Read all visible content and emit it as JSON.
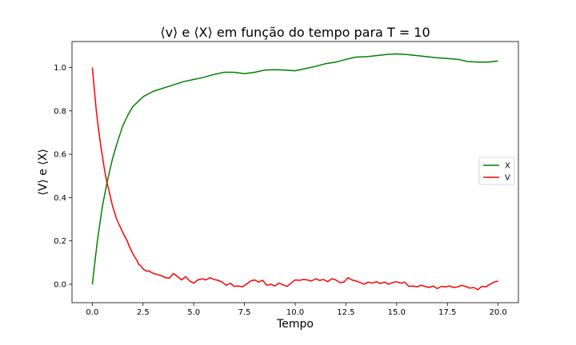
{
  "chart_data": {
    "type": "line",
    "title": "⟨v⟩ e ⟨X⟩ em função do tempo para T = 10",
    "xlabel": "Tempo",
    "ylabel": "⟨V⟩ e ⟨X⟩",
    "xlim": [
      -1.0,
      21.0
    ],
    "ylim": [
      -0.085,
      1.12
    ],
    "xticks": [
      0.0,
      2.5,
      5.0,
      7.5,
      10.0,
      12.5,
      15.0,
      17.5,
      20.0
    ],
    "xtick_labels": [
      "0.0",
      "2.5",
      "5.0",
      "7.5",
      "10.0",
      "12.5",
      "15.0",
      "17.5",
      "20.0"
    ],
    "yticks": [
      0.0,
      0.2,
      0.4,
      0.6,
      0.8,
      1.0
    ],
    "ytick_labels": [
      "0.0",
      "0.2",
      "0.4",
      "0.6",
      "0.8",
      "1.0"
    ],
    "grid": false,
    "legend": "center-right",
    "series": [
      {
        "name": "X",
        "color": "#008000",
        "x": [
          0,
          0.25,
          0.5,
          0.75,
          1.0,
          1.25,
          1.5,
          1.75,
          2.0,
          2.5,
          3.0,
          3.5,
          4.0,
          4.5,
          5.0,
          5.5,
          6.0,
          6.5,
          7.0,
          7.5,
          8.0,
          8.5,
          9.0,
          9.5,
          10.0,
          10.5,
          11.0,
          11.5,
          12.0,
          12.5,
          13.0,
          13.5,
          14.0,
          14.5,
          15.0,
          15.5,
          16.0,
          16.5,
          17.0,
          17.5,
          18.0,
          18.5,
          19.0,
          19.5,
          20.0
        ],
        "y": [
          0.0,
          0.2,
          0.36,
          0.48,
          0.58,
          0.66,
          0.73,
          0.78,
          0.82,
          0.865,
          0.89,
          0.905,
          0.92,
          0.935,
          0.945,
          0.955,
          0.968,
          0.978,
          0.978,
          0.972,
          0.978,
          0.988,
          0.99,
          0.988,
          0.985,
          0.995,
          1.005,
          1.018,
          1.025,
          1.038,
          1.048,
          1.05,
          1.055,
          1.06,
          1.063,
          1.06,
          1.055,
          1.05,
          1.045,
          1.042,
          1.038,
          1.028,
          1.025,
          1.025,
          1.03
        ]
      },
      {
        "name": "V",
        "color": "#ff0000",
        "x": [
          0,
          0.1,
          0.2,
          0.3,
          0.4,
          0.5,
          0.6,
          0.7,
          0.8,
          0.9,
          1.0,
          1.1,
          1.2,
          1.3,
          1.4,
          1.5,
          1.6,
          1.7,
          1.8,
          1.9,
          2.0,
          2.1,
          2.2,
          2.3,
          2.4,
          2.5,
          2.6,
          2.7,
          2.8,
          2.9,
          3.0,
          3.2,
          3.4,
          3.6,
          3.8,
          4.0,
          4.2,
          4.4,
          4.6,
          4.8,
          5.0,
          5.2,
          5.4,
          5.6,
          5.8,
          6.0,
          6.2,
          6.4,
          6.6,
          6.8,
          7.0,
          7.2,
          7.4,
          7.6,
          7.8,
          8.0,
          8.2,
          8.4,
          8.6,
          8.8,
          9.0,
          9.2,
          9.4,
          9.6,
          9.8,
          10.0,
          10.2,
          10.4,
          10.6,
          10.8,
          11.0,
          11.2,
          11.4,
          11.6,
          11.8,
          12.0,
          12.2,
          12.4,
          12.6,
          12.8,
          13.0,
          13.2,
          13.4,
          13.6,
          13.8,
          14.0,
          14.2,
          14.4,
          14.6,
          14.8,
          15.0,
          15.2,
          15.4,
          15.6,
          15.8,
          16.0,
          16.2,
          16.4,
          16.6,
          16.8,
          17.0,
          17.2,
          17.4,
          17.6,
          17.8,
          18.0,
          18.2,
          18.4,
          18.6,
          18.8,
          19.0,
          19.2,
          19.4,
          19.6,
          19.8,
          20.0
        ],
        "y": [
          1.0,
          0.9,
          0.8,
          0.72,
          0.65,
          0.59,
          0.53,
          0.48,
          0.44,
          0.4,
          0.36,
          0.33,
          0.3,
          0.28,
          0.26,
          0.24,
          0.22,
          0.205,
          0.18,
          0.16,
          0.14,
          0.125,
          0.11,
          0.09,
          0.085,
          0.07,
          0.065,
          0.06,
          0.062,
          0.055,
          0.05,
          0.045,
          0.04,
          0.03,
          0.028,
          0.05,
          0.035,
          0.02,
          0.035,
          0.015,
          0.005,
          0.02,
          0.025,
          0.02,
          0.03,
          0.022,
          0.018,
          0.01,
          -0.005,
          0.005,
          -0.01,
          -0.008,
          -0.012,
          0.0,
          0.015,
          0.02,
          0.01,
          0.018,
          -0.005,
          0.0,
          -0.008,
          0.005,
          -0.003,
          -0.01,
          0.005,
          0.02,
          0.018,
          0.022,
          0.02,
          0.015,
          0.025,
          0.018,
          0.022,
          0.012,
          0.025,
          0.02,
          0.008,
          0.01,
          0.03,
          0.02,
          0.015,
          0.008,
          0.0,
          0.01,
          0.005,
          0.012,
          0.003,
          0.01,
          0.0,
          0.008,
          0.012,
          0.005,
          0.01,
          -0.01,
          -0.008,
          -0.012,
          -0.005,
          -0.01,
          -0.015,
          -0.008,
          -0.02,
          -0.01,
          -0.012,
          -0.008,
          -0.015,
          -0.012,
          -0.005,
          -0.01,
          -0.018,
          -0.015,
          -0.025,
          -0.01,
          -0.012,
          0.0,
          0.01,
          0.015
        ]
      }
    ]
  }
}
